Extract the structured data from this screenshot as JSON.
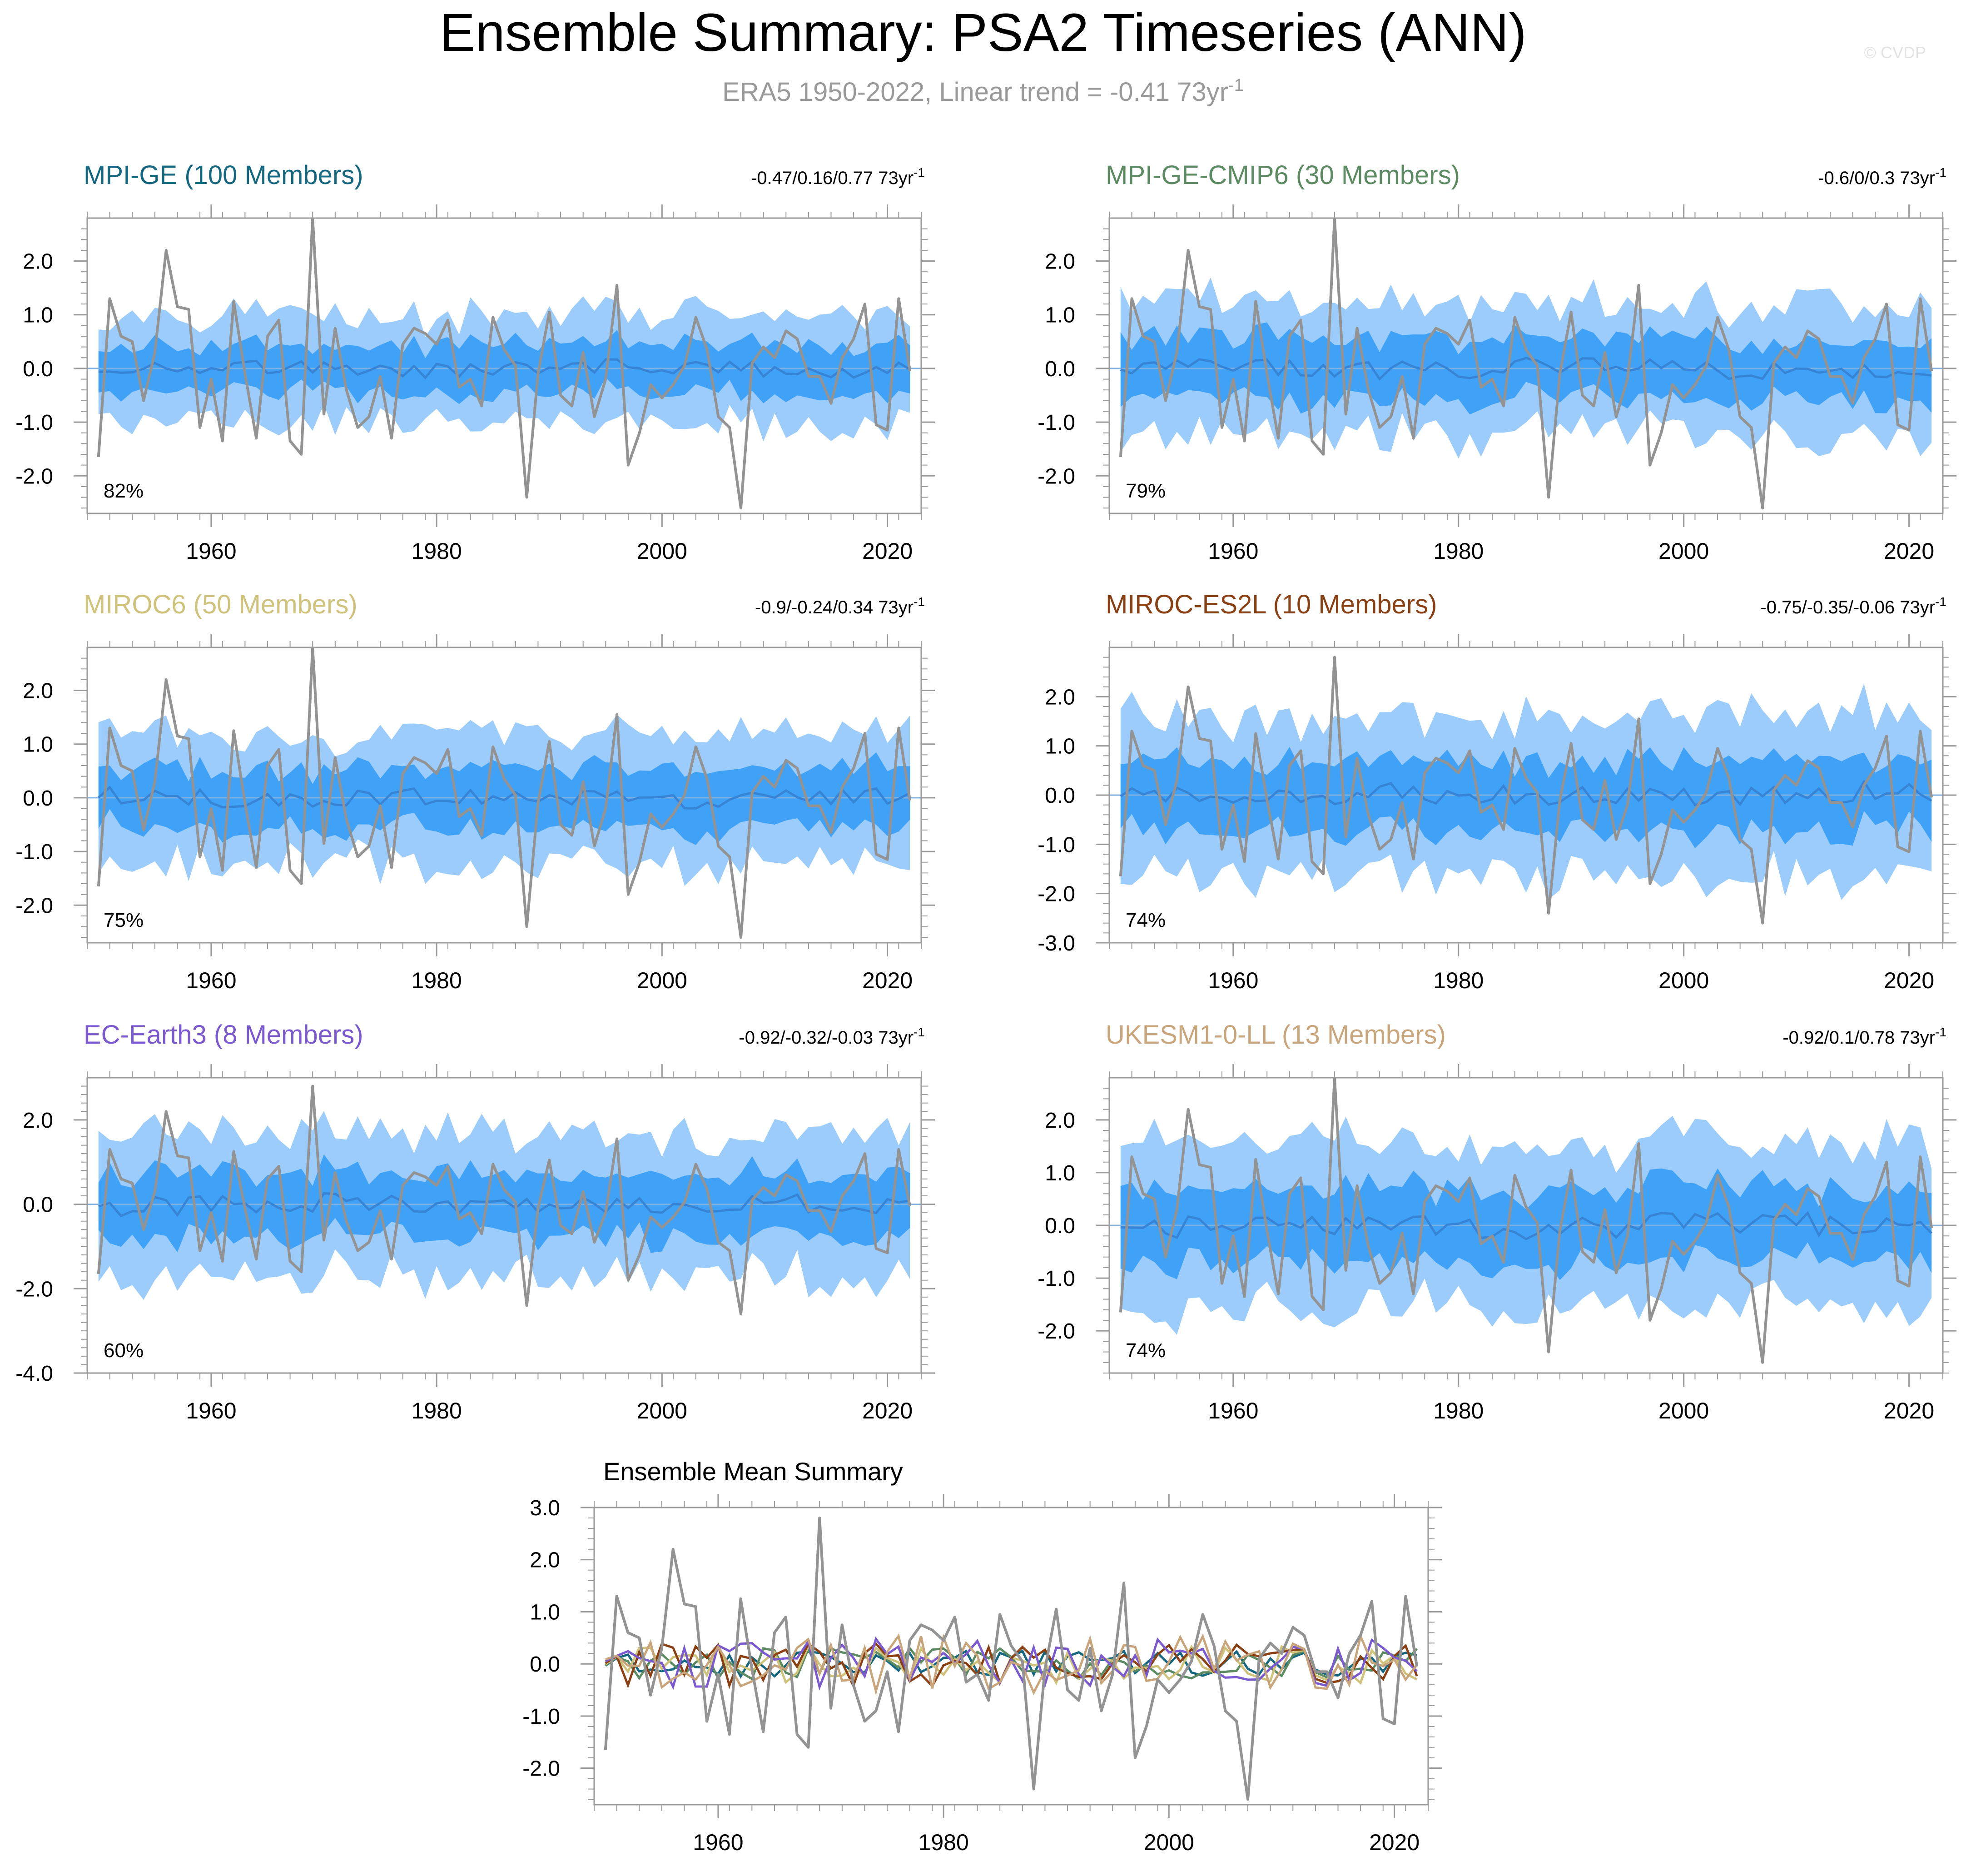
{
  "figure": {
    "title": "Ensemble Summary: PSA2 Timeseries (ANN)",
    "subtitle_main": "ERA5 1950-2022, Linear trend = -0.41 73yr",
    "subtitle_sup": "-1",
    "watermark": "© CVDP"
  },
  "colors": {
    "obs": "#939393",
    "outer_band": "#9bccfb",
    "inner_band": "#3fa2f6",
    "mean_line": "#3784d6",
    "zero_line": "#7fb0e0",
    "frame": "#9a9a9a"
  },
  "chart_data": [
    {
      "type": "line",
      "title": "MPI-GE (100 Members)",
      "title_color": "#15677f",
      "trend_text": "-0.47/0.16/0.77 73yr",
      "trend_sup": "-1",
      "percent": "82%",
      "amp": 1.0,
      "xlim": [
        1949,
        2023
      ],
      "ylim": [
        -2.7,
        2.8
      ],
      "yticks": [
        2.0,
        1.0,
        0.0,
        -1.0,
        -2.0
      ],
      "ytick_labels": [
        "2.0",
        "1.0",
        "0.0",
        "-1.0",
        "-2.0"
      ],
      "xticks": [
        1960,
        1980,
        2000,
        2020
      ],
      "xtick_labels": [
        "1960",
        "1980",
        "2000",
        "2020"
      ]
    },
    {
      "type": "line",
      "title": "MPI-GE-CMIP6 (30 Members)",
      "title_color": "#5c8a62",
      "trend_text": "-0.6/0/0.3 73yr",
      "trend_sup": "-1",
      "percent": "79%",
      "amp": 1.25,
      "xlim": [
        1949,
        2023
      ],
      "ylim": [
        -2.7,
        2.8
      ],
      "yticks": [
        2.0,
        1.0,
        0.0,
        -1.0,
        -2.0
      ],
      "ytick_labels": [
        "2.0",
        "1.0",
        "0.0",
        "-1.0",
        "-2.0"
      ],
      "xticks": [
        1960,
        1980,
        2000,
        2020
      ],
      "xtick_labels": [
        "1960",
        "1980",
        "2000",
        "2020"
      ]
    },
    {
      "type": "line",
      "title": "MIROC6 (50 Members)",
      "title_color": "#cfc27a",
      "trend_text": "-0.9/-0.24/0.34 73yr",
      "trend_sup": "-1",
      "percent": "75%",
      "amp": 1.2,
      "xlim": [
        1949,
        2023
      ],
      "ylim": [
        -2.7,
        2.8
      ],
      "yticks": [
        2.0,
        1.0,
        0.0,
        -1.0,
        -2.0
      ],
      "ytick_labels": [
        "2.0",
        "1.0",
        "0.0",
        "-1.0",
        "-2.0"
      ],
      "xticks": [
        1960,
        1980,
        2000,
        2020
      ],
      "xtick_labels": [
        "1960",
        "1980",
        "2000",
        "2020"
      ]
    },
    {
      "type": "line",
      "title": "MIROC-ES2L (10 Members)",
      "title_color": "#8a4013",
      "trend_text": "-0.75/-0.35/-0.06 73yr",
      "trend_sup": "-1",
      "percent": "74%",
      "amp": 1.6,
      "xlim": [
        1949,
        2023
      ],
      "ylim": [
        -3.0,
        3.0
      ],
      "yticks": [
        2.0,
        1.0,
        0.0,
        -1.0,
        -2.0,
        -3.0
      ],
      "ytick_labels": [
        "2.0",
        "1.0",
        "0.0",
        "-1.0",
        "-2.0",
        "-3.0"
      ],
      "xticks": [
        1960,
        1980,
        2000,
        2020
      ],
      "xtick_labels": [
        "1960",
        "1980",
        "2000",
        "2020"
      ]
    },
    {
      "type": "line",
      "title": "EC-Earth3 (8 Members)",
      "title_color": "#7b5ad0",
      "trend_text": "-0.92/-0.32/-0.03 73yr",
      "trend_sup": "-1",
      "percent": "60%",
      "amp": 1.7,
      "xlim": [
        1949,
        2023
      ],
      "ylim": [
        -4.0,
        3.0
      ],
      "yticks": [
        2.0,
        0.0,
        -2.0,
        -4.0
      ],
      "ytick_labels": [
        "2.0",
        "0.0",
        "-2.0",
        "-4.0"
      ],
      "xticks": [
        1960,
        1980,
        2000,
        2020
      ],
      "xtick_labels": [
        "1960",
        "1980",
        "2000",
        "2020"
      ]
    },
    {
      "type": "line",
      "title": "UKESM1-0-LL (13 Members)",
      "title_color": "#c9a57c",
      "trend_text": "-0.92/0.1/0.78 73yr",
      "trend_sup": "-1",
      "percent": "74%",
      "amp": 1.55,
      "xlim": [
        1949,
        2023
      ],
      "ylim": [
        -2.8,
        2.8
      ],
      "yticks": [
        2.0,
        1.0,
        0.0,
        -1.0,
        -2.0
      ],
      "ytick_labels": [
        "2.0",
        "1.0",
        "0.0",
        "-1.0",
        "-2.0"
      ],
      "xticks": [
        1960,
        1980,
        2000,
        2020
      ],
      "xtick_labels": [
        "1960",
        "1980",
        "2000",
        "2020"
      ]
    },
    {
      "type": "line",
      "title": "Ensemble Mean Summary",
      "xlim": [
        1949,
        2023
      ],
      "ylim": [
        -2.7,
        3.0
      ],
      "yticks": [
        3.0,
        2.0,
        1.0,
        0.0,
        -1.0,
        -2.0
      ],
      "ytick_labels": [
        "3.0",
        "2.0",
        "1.0",
        "0.0",
        "-1.0",
        "-2.0"
      ],
      "xticks": [
        1960,
        1980,
        2000,
        2020
      ],
      "xtick_labels": [
        "1960",
        "1980",
        "2000",
        "2020"
      ],
      "series_colors": [
        "#15677f",
        "#5c8a62",
        "#cfc27a",
        "#8a4013",
        "#7b5ad0",
        "#c9a57c"
      ]
    }
  ],
  "obs_series": {
    "name": "ERA5",
    "years": [
      1950,
      1951,
      1952,
      1953,
      1954,
      1955,
      1956,
      1957,
      1958,
      1959,
      1960,
      1961,
      1962,
      1963,
      1964,
      1965,
      1966,
      1967,
      1968,
      1969,
      1970,
      1971,
      1972,
      1973,
      1974,
      1975,
      1976,
      1977,
      1978,
      1979,
      1980,
      1981,
      1982,
      1983,
      1984,
      1985,
      1986,
      1987,
      1988,
      1989,
      1990,
      1991,
      1992,
      1993,
      1994,
      1995,
      1996,
      1997,
      1998,
      1999,
      2000,
      2001,
      2002,
      2003,
      2004,
      2005,
      2006,
      2007,
      2008,
      2009,
      2010,
      2011,
      2012,
      2013,
      2014,
      2015,
      2016,
      2017,
      2018,
      2019,
      2020,
      2021,
      2022
    ],
    "values": [
      -1.65,
      1.3,
      0.6,
      0.5,
      -0.6,
      0.3,
      2.2,
      1.15,
      1.1,
      -1.1,
      -0.2,
      -1.35,
      1.25,
      -0.1,
      -1.3,
      0.6,
      0.9,
      -1.35,
      -1.6,
      2.8,
      -0.85,
      0.75,
      -0.4,
      -1.1,
      -0.9,
      -0.15,
      -1.3,
      0.45,
      0.75,
      0.65,
      0.45,
      0.9,
      -0.35,
      -0.2,
      -0.7,
      0.95,
      0.35,
      0.05,
      -2.4,
      -0.1,
      1.05,
      -0.5,
      -0.7,
      0.3,
      -0.9,
      -0.2,
      1.55,
      -1.8,
      -1.2,
      -0.3,
      -0.55,
      -0.3,
      0.05,
      0.95,
      0.35,
      -0.9,
      -1.1,
      -2.6,
      0.1,
      0.4,
      0.2,
      0.7,
      0.55,
      -0.15,
      -0.15,
      -0.65,
      0.2,
      0.55,
      1.2,
      -1.05,
      -1.15,
      1.3,
      -0.05
    ]
  }
}
